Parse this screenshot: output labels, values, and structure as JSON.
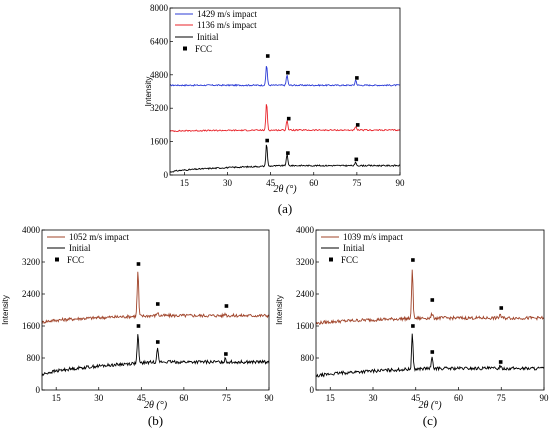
{
  "chart_data": [
    {
      "type": "line",
      "caption": "(a)",
      "xlabel": "2θ (°)",
      "ylabel": "Intensity",
      "xlim": [
        10,
        90
      ],
      "ylim": [
        0,
        8000
      ],
      "xticks": [
        "15",
        "30",
        "45",
        "60",
        "75",
        "90"
      ],
      "yticks": [
        "0",
        "1600",
        "3200",
        "4800",
        "6400",
        "8000"
      ],
      "legend": [
        "1429 m/s impact",
        "1136 m/s impact",
        "Initial",
        "FCC"
      ],
      "series": [
        {
          "name": "1429 m/s impact",
          "color": "#2b3bd6",
          "baseline": 4300,
          "baseline_end": 4300,
          "peaks": [
            [
              43.6,
              5300
            ],
            [
              50.7,
              4800
            ],
            [
              74.6,
              4550
            ]
          ]
        },
        {
          "name": "1136 m/s impact",
          "color": "#e8232a",
          "baseline": 2100,
          "baseline_end": 2150,
          "peaks": [
            [
              43.6,
              3500
            ],
            [
              50.7,
              2650
            ],
            [
              74.6,
              2300
            ]
          ]
        },
        {
          "name": "Initial",
          "color": "#000000",
          "baseline": 120,
          "baseline_end": 450,
          "peaks": [
            [
              43.6,
              1550
            ],
            [
              50.7,
              1000
            ],
            [
              74.6,
              600
            ]
          ]
        }
      ],
      "fcc_markers": [
        [
          44.0,
          5700
        ],
        [
          51.0,
          4900
        ],
        [
          75.0,
          4650
        ],
        [
          51.3,
          2700
        ],
        [
          75.3,
          2400
        ],
        [
          43.8,
          1650
        ],
        [
          51.0,
          1050
        ],
        [
          74.8,
          750
        ]
      ]
    },
    {
      "type": "line",
      "caption": "(b)",
      "xlabel": "2θ (°)",
      "ylabel": "Intensity",
      "xlim": [
        10,
        90
      ],
      "ylim": [
        0,
        4000
      ],
      "xticks": [
        "15",
        "30",
        "45",
        "60",
        "75",
        "90"
      ],
      "yticks": [
        "0",
        "800",
        "1600",
        "2400",
        "3200",
        "4000"
      ],
      "legend": [
        "1052 m/s impact",
        "Initial",
        "FCC"
      ],
      "series": [
        {
          "name": "1052 m/s impact",
          "color": "#a0442a",
          "baseline": 1680,
          "baseline_end": 1860,
          "peaks": [
            [
              43.8,
              3000
            ],
            [
              50.7,
              1950
            ],
            [
              74.6,
              1920
            ]
          ]
        },
        {
          "name": "Initial",
          "color": "#000000",
          "baseline": 350,
          "baseline_end": 700,
          "peaks": [
            [
              43.8,
              1450
            ],
            [
              50.7,
              1100
            ],
            [
              74.6,
              800
            ]
          ]
        }
      ],
      "fcc_markers": [
        [
          44.0,
          3150
        ],
        [
          50.8,
          2150
        ],
        [
          75.0,
          2100
        ],
        [
          44.0,
          1600
        ],
        [
          50.8,
          1200
        ],
        [
          74.8,
          900
        ]
      ]
    },
    {
      "type": "line",
      "caption": "(c)",
      "xlabel": "2θ (°)",
      "ylabel": "Intensity",
      "xlim": [
        10,
        90
      ],
      "ylim": [
        0,
        4000
      ],
      "xticks": [
        "15",
        "30",
        "45",
        "60",
        "75",
        "90"
      ],
      "yticks": [
        "0",
        "800",
        "1600",
        "2400",
        "3200",
        "4000"
      ],
      "legend": [
        "1039 m/s impact",
        "Initial",
        "FCC"
      ],
      "series": [
        {
          "name": "1039 m/s impact",
          "color": "#a0442a",
          "baseline": 1650,
          "baseline_end": 1800,
          "peaks": [
            [
              43.8,
              3050
            ],
            [
              50.7,
              1900
            ],
            [
              74.6,
              1900
            ]
          ]
        },
        {
          "name": "Initial",
          "color": "#000000",
          "baseline": 320,
          "baseline_end": 540,
          "peaks": [
            [
              43.8,
              1450
            ],
            [
              50.7,
              800
            ],
            [
              74.6,
              620
            ]
          ]
        }
      ],
      "fcc_markers": [
        [
          44.0,
          3250
        ],
        [
          50.8,
          2250
        ],
        [
          75.0,
          2050
        ],
        [
          44.0,
          1600
        ],
        [
          50.8,
          950
        ],
        [
          74.8,
          700
        ]
      ]
    }
  ]
}
